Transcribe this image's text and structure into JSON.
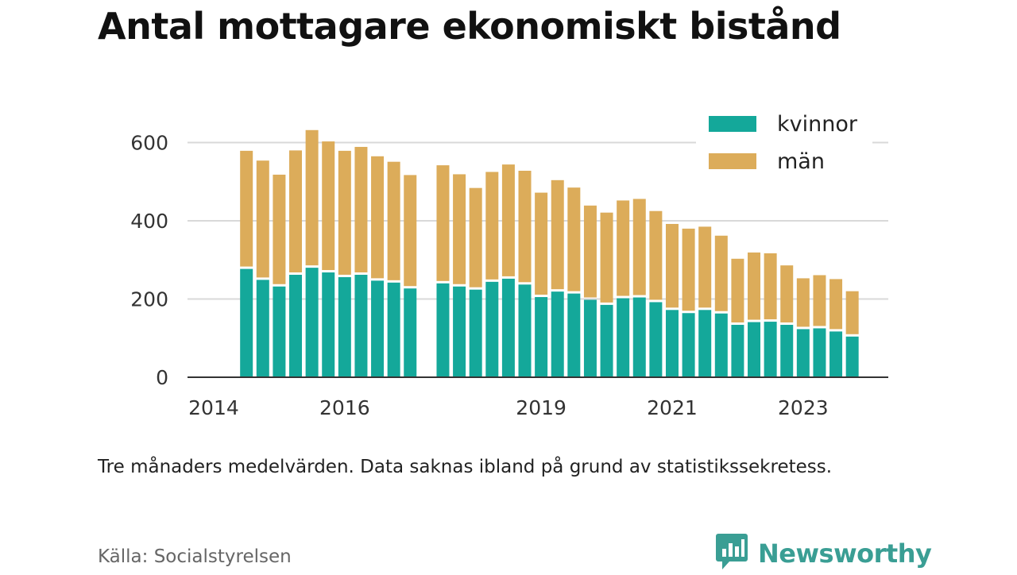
{
  "title": "Antal mottagare ekonomiskt bistånd",
  "note": "Tre månaders medelvärden. Data saknas ibland på grund av statistikssekretess.",
  "source": "Källa: Socialstyrelsen",
  "brand": {
    "name": "Newsworthy",
    "icon": "newsworthy-logo-icon",
    "color": "#3a9e94"
  },
  "colors": {
    "kvinnor": "#14a89a",
    "man": "#dcac5a",
    "grid": "#d9d9d9",
    "axis": "#333333"
  },
  "chart_data": {
    "type": "bar",
    "stacked": true,
    "title": "Antal mottagare ekonomiskt bistånd",
    "xlabel": "",
    "ylabel": "",
    "ylim": [
      0,
      660
    ],
    "yticks": [
      0,
      200,
      400,
      600
    ],
    "xticks": [
      {
        "label": "2014",
        "pos": 2014.0
      },
      {
        "label": "2016",
        "pos": 2016.0
      },
      {
        "label": "2019",
        "pos": 2019.0
      },
      {
        "label": "2021",
        "pos": 2021.0
      },
      {
        "label": "2023",
        "pos": 2023.0
      }
    ],
    "xlim": [
      2013.6,
      2024.3
    ],
    "grid": true,
    "legend": "top-right",
    "x": [
      2014.5,
      2014.75,
      2015.0,
      2015.25,
      2015.5,
      2015.75,
      2016.0,
      2016.25,
      2016.5,
      2016.75,
      2017.0,
      2017.5,
      2017.75,
      2018.0,
      2018.25,
      2018.5,
      2018.75,
      2019.0,
      2019.25,
      2019.5,
      2019.75,
      2020.0,
      2020.25,
      2020.5,
      2020.75,
      2021.0,
      2021.25,
      2021.5,
      2021.75,
      2022.0,
      2022.25,
      2022.5,
      2022.75,
      2023.0,
      2023.25,
      2023.5,
      2023.75
    ],
    "series": [
      {
        "name": "kvinnor",
        "values": [
          277,
          249,
          232,
          262,
          280,
          268,
          256,
          262,
          247,
          242,
          227,
          240,
          232,
          224,
          244,
          252,
          237,
          205,
          219,
          214,
          198,
          185,
          202,
          204,
          192,
          172,
          164,
          172,
          163,
          134,
          141,
          142,
          134,
          123,
          125,
          117,
          104
        ]
      },
      {
        "name": "män",
        "values": [
          302,
          305,
          286,
          318,
          352,
          335,
          323,
          327,
          318,
          309,
          290,
          302,
          287,
          260,
          281,
          292,
          291,
          267,
          285,
          271,
          241,
          236,
          250,
          252,
          233,
          220,
          216,
          213,
          199,
          169,
          178,
          175,
          152,
          130,
          136,
          134,
          116
        ]
      }
    ]
  }
}
